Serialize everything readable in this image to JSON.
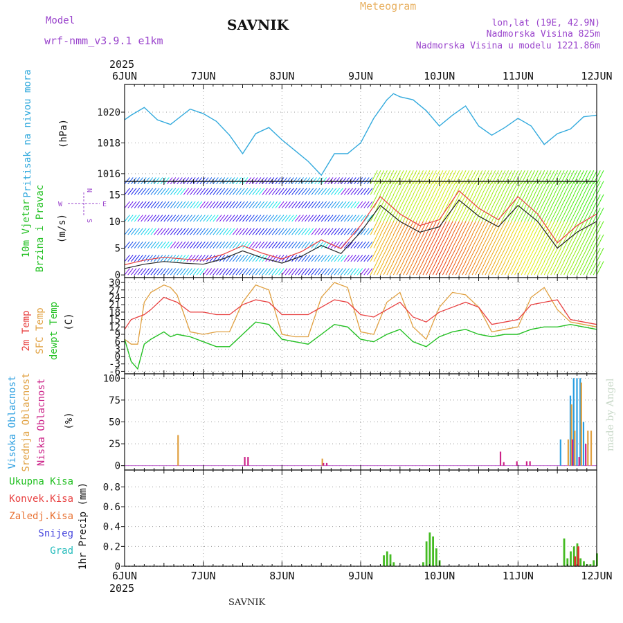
{
  "header": {
    "model_label": "Model",
    "model_name": "wrf-nmm_v3.9.1 e1km",
    "station": "SAVNIK",
    "meteogram": "Meteogram",
    "location": "lon,lat (19E, 42.9N)",
    "elevation": "Nadmorska Visina 825m",
    "model_elevation": "Nadmorska Visina u modelu 1221.86m"
  },
  "footer": {
    "station": "SAVNIK",
    "watermark": "made by Angel"
  },
  "axis": {
    "year": "2025",
    "days": [
      "6JUN",
      "7JUN",
      "8JUN",
      "9JUN",
      "10JUN",
      "11JUN",
      "12JUN"
    ]
  },
  "wind_compass": {
    "n": "N",
    "s": "S",
    "w": "W",
    "e": "E"
  },
  "colors": {
    "pressure": "#33aadd",
    "temp2m": "#e84040",
    "sfc": "#e0a040",
    "dewpt": "#22c022",
    "high_cloud": "#2a9ee0",
    "mid_cloud": "#e0a040",
    "low_cloud": "#cc2288",
    "total_precip": "#44bb22",
    "convective": "#e03030"
  },
  "chart_data": [
    {
      "type": "line",
      "ylabel_main": "Pritisak na nivou mora",
      "ylabel_unit": "(hPa)",
      "ylim": [
        1015.5,
        1021.8
      ],
      "yticks": [
        "1016",
        "1018",
        "1020"
      ],
      "x_hours": [
        0,
        2,
        6,
        10,
        14,
        20,
        24,
        28,
        32,
        36,
        40,
        44,
        48,
        52,
        56,
        60,
        64,
        68,
        72,
        76,
        80,
        82,
        84,
        88,
        92,
        96,
        100,
        104,
        108,
        112,
        116,
        120,
        124,
        128,
        132,
        136,
        140,
        144
      ],
      "series": [
        {
          "name": "Pritisak na nivou mora",
          "values": [
            1019.5,
            1019.8,
            1020.3,
            1019.5,
            1019.2,
            1020.2,
            1019.9,
            1019.4,
            1018.5,
            1017.3,
            1018.6,
            1019.0,
            1018.2,
            1017.5,
            1016.8,
            1015.9,
            1017.3,
            1017.3,
            1018.0,
            1019.6,
            1020.8,
            1021.2,
            1021.0,
            1020.8,
            1020.1,
            1019.1,
            1019.8,
            1020.4,
            1019.1,
            1018.5,
            1019.0,
            1019.6,
            1019.1,
            1017.9,
            1018.6,
            1018.9,
            1019.7,
            1019.8
          ]
        }
      ]
    },
    {
      "type": "line",
      "ylabel_main": "10m Vjetar",
      "ylabel_sub": "Brzina i Pravac",
      "ylabel_unit": "(m/s)",
      "ylim": [
        -0.5,
        17.5
      ],
      "yticks": [
        "0",
        "5",
        "10",
        "15"
      ],
      "x_hours": [
        0,
        6,
        12,
        18,
        24,
        30,
        36,
        42,
        48,
        54,
        60,
        66,
        72,
        78,
        84,
        90,
        96,
        102,
        108,
        114,
        120,
        126,
        132,
        138,
        144
      ],
      "series": [
        {
          "name": "10m Vjetar Brzina",
          "values": [
            1.2,
            2.0,
            2.5,
            2.2,
            2.0,
            3.0,
            4.5,
            3.2,
            2.2,
            3.5,
            5.5,
            4.0,
            8.0,
            13.0,
            10.0,
            8.0,
            9.0,
            14.0,
            11.0,
            9.0,
            13.0,
            10.0,
            5.0,
            8.0,
            10.0
          ]
        }
      ]
    },
    {
      "type": "line",
      "ylabel_main": "2m Temp",
      "ylabel_sub": "SFC Temp",
      "ylabel_extra": "dewpt Temp",
      "ylabel_unit": "(C)",
      "ylim": [
        -7,
        32
      ],
      "yticks": [
        "-6",
        "-3",
        "0",
        "3",
        "6",
        "9",
        "12",
        "15",
        "18",
        "21",
        "24",
        "27",
        "30"
      ],
      "x_hours": [
        0,
        2,
        4,
        6,
        8,
        12,
        14,
        16,
        20,
        24,
        28,
        32,
        36,
        40,
        44,
        48,
        52,
        56,
        60,
        64,
        68,
        72,
        76,
        80,
        84,
        88,
        92,
        96,
        100,
        104,
        108,
        112,
        116,
        120,
        124,
        128,
        132,
        136,
        140,
        144
      ],
      "series": [
        {
          "name": "2m Temp",
          "values": [
            11,
            15,
            16,
            17,
            19,
            24,
            23,
            22,
            18,
            18,
            17,
            17,
            21,
            23,
            22,
            17,
            17,
            17,
            20,
            23,
            22,
            17,
            16,
            19,
            22,
            16,
            14,
            18,
            20,
            22,
            20,
            13,
            14,
            15,
            21,
            22,
            23,
            15,
            14,
            13
          ]
        },
        {
          "name": "SFC Temp",
          "values": [
            7,
            5,
            5,
            22,
            26,
            29,
            28,
            25,
            10,
            9,
            10,
            10,
            22,
            29,
            27,
            9,
            8,
            8,
            24,
            30,
            28,
            10,
            9,
            22,
            26,
            12,
            7,
            20,
            26,
            25,
            20,
            10,
            11,
            12,
            24,
            28,
            19,
            14,
            13,
            12
          ]
        },
        {
          "name": "dewpt Temp",
          "values": [
            7,
            -2,
            -5,
            5,
            7,
            10,
            8,
            9,
            8,
            6,
            4,
            4,
            9,
            14,
            13,
            7,
            6,
            5,
            9,
            13,
            12,
            7,
            6,
            9,
            11,
            6,
            4,
            8,
            10,
            11,
            9,
            8,
            9,
            9,
            11,
            12,
            12,
            13,
            12,
            11
          ]
        }
      ]
    },
    {
      "type": "bar",
      "ylabel_high": "Visoka Oblacnost",
      "ylabel_mid": "Srednja Oblacnost",
      "ylabel_low": "Niska Oblacnost",
      "ylabel_unit": "(%)",
      "ylim": [
        -5,
        105
      ],
      "yticks": [
        "0",
        "25",
        "50",
        "75",
        "100"
      ],
      "series": [
        {
          "name": "Visoka Oblacnost",
          "x_hours": [
            133,
            136,
            137,
            138,
            139,
            140
          ],
          "values": [
            30,
            80,
            100,
            100,
            100,
            50
          ]
        },
        {
          "name": "Srednja Oblacnost",
          "x_hours": [
            16,
            60,
            135,
            136,
            137,
            139,
            141,
            142
          ],
          "values": [
            35,
            8,
            30,
            70,
            40,
            95,
            40,
            40
          ]
        },
        {
          "name": "Niska Oblacnost",
          "x_hours": [
            36,
            37,
            60,
            61,
            114,
            115,
            119,
            122,
            123,
            136,
            138,
            140
          ],
          "values": [
            10,
            10,
            3,
            3,
            16,
            4,
            5,
            5,
            5,
            30,
            10,
            25
          ]
        }
      ]
    },
    {
      "type": "bar",
      "legend": [
        "Ukupna Kisa",
        "Konvek.Kisa",
        "Zaledj.Kisa",
        "Snijeg",
        "Grad"
      ],
      "ylabel_main": "1hr Precip",
      "ylabel_unit": "(mm)",
      "ylim": [
        0,
        0.97
      ],
      "yticks": [
        "0",
        "0.2",
        "0.4",
        "0.6",
        "0.8"
      ],
      "series": [
        {
          "name": "Ukupna Kisa",
          "x_hours": [
            79,
            80,
            81,
            82,
            91,
            92,
            93,
            94,
            95,
            96,
            134,
            135,
            136,
            137,
            138,
            139,
            140,
            141,
            142,
            143,
            144
          ],
          "values": [
            0.11,
            0.15,
            0.12,
            0.04,
            0.04,
            0.25,
            0.34,
            0.3,
            0.18,
            0.06,
            0.28,
            0.08,
            0.15,
            0.2,
            0.23,
            0.08,
            0.05,
            0.02,
            0.02,
            0.06,
            0.13
          ]
        },
        {
          "name": "Konvek.Kisa",
          "x_hours": [
            137,
            138
          ],
          "values": [
            0.1,
            0.2
          ]
        }
      ]
    }
  ]
}
